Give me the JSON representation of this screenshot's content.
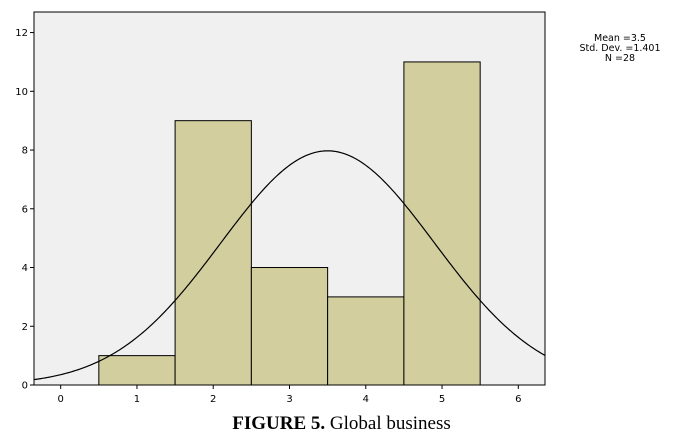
{
  "chart_data": {
    "type": "bar",
    "subtype": "histogram",
    "bins": [
      {
        "from": 0.5,
        "to": 1.5,
        "count": 1
      },
      {
        "from": 1.5,
        "to": 2.5,
        "count": 9
      },
      {
        "from": 2.5,
        "to": 3.5,
        "count": 4
      },
      {
        "from": 3.5,
        "to": 4.5,
        "count": 3
      },
      {
        "from": 4.5,
        "to": 5.5,
        "count": 11
      }
    ],
    "x_ticks": [
      "0",
      "1",
      "2",
      "3",
      "4",
      "5",
      "6"
    ],
    "y_ticks": [
      "0",
      "2",
      "4",
      "6",
      "8",
      "10",
      "12"
    ],
    "xlim": [
      -0.35,
      6.35
    ],
    "ylim": [
      0,
      12.7
    ],
    "normal_curve": {
      "mean": 3.5,
      "std_dev": 1.401,
      "n": 28,
      "bin_width": 1
    },
    "grid": false,
    "colors": {
      "bar_fill": "#d2ce9e",
      "plot_background": "#f0f0f0",
      "curve": "#000000"
    }
  },
  "stats": {
    "mean": "Mean =3.5",
    "std_dev": "Std. Dev. =1.401",
    "n": "N =28"
  },
  "caption": {
    "label": "FIGURE 5.",
    "text": " Global business"
  }
}
